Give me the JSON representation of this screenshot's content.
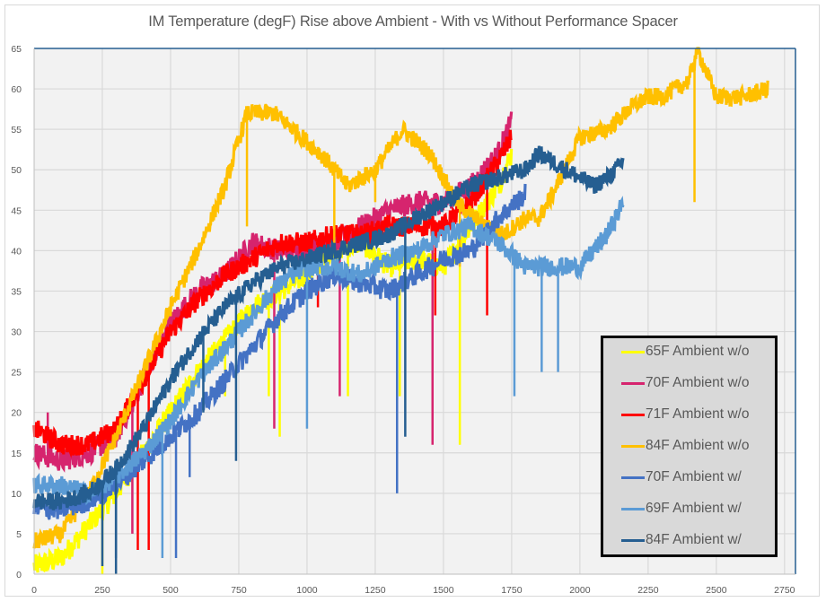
{
  "chart_data": {
    "type": "line",
    "title": "IM Temperature (degF) Rise above Ambient - With vs Without Performance Spacer",
    "xlabel": "",
    "ylabel": "",
    "xlim": [
      0,
      2790
    ],
    "ylim": [
      0,
      65
    ],
    "x_ticks": [
      0,
      250,
      500,
      750,
      1000,
      1250,
      1500,
      1750,
      2000,
      2250,
      2500,
      2750
    ],
    "y_ticks": [
      0,
      5,
      10,
      15,
      20,
      25,
      30,
      35,
      40,
      45,
      50,
      55,
      60,
      65
    ],
    "grid": true,
    "legend_position": "bottom-right",
    "series": [
      {
        "name": "65F Ambient w/o",
        "color": "#ffff00",
        "x": [
          0,
          100,
          200,
          300,
          400,
          500,
          600,
          700,
          800,
          900,
          1000,
          1100,
          1200,
          1300,
          1400,
          1500,
          1600,
          1700,
          1750
        ],
        "y": [
          1,
          2,
          6,
          10,
          15,
          20,
          25,
          29,
          33,
          35,
          37,
          40,
          41,
          38,
          39,
          38,
          43,
          48,
          52
        ],
        "noise": 1.4,
        "spikes": [
          [
            250,
            0
          ],
          [
            700,
            22
          ],
          [
            860,
            22
          ],
          [
            900,
            17
          ],
          [
            1150,
            22
          ],
          [
            1340,
            22
          ],
          [
            1560,
            16
          ]
        ]
      },
      {
        "name": "70F Ambient w/o",
        "color": "#d6246e",
        "x": [
          0,
          100,
          200,
          300,
          400,
          500,
          600,
          700,
          800,
          900,
          1000,
          1100,
          1200,
          1300,
          1400,
          1500,
          1600,
          1700,
          1750
        ],
        "y": [
          15,
          14,
          15,
          17,
          24,
          31,
          35,
          37,
          41,
          40,
          40,
          41,
          43,
          45,
          46,
          46,
          48,
          52,
          56
        ],
        "noise": 1.4,
        "spikes": [
          [
            50,
            20
          ],
          [
            360,
            5
          ],
          [
            880,
            18
          ],
          [
            1120,
            22
          ],
          [
            1460,
            16
          ]
        ]
      },
      {
        "name": "71F Ambient w/o",
        "color": "#ff0000",
        "x": [
          0,
          100,
          200,
          300,
          400,
          500,
          600,
          700,
          800,
          900,
          1000,
          1100,
          1200,
          1300,
          1400,
          1500,
          1600,
          1700,
          1750
        ],
        "y": [
          18,
          16,
          16,
          18,
          24,
          30,
          34,
          37,
          39,
          41,
          41,
          42,
          42,
          43,
          43,
          43,
          46,
          51,
          54
        ],
        "noise": 1.3,
        "spikes": [
          [
            380,
            3
          ],
          [
            420,
            3
          ],
          [
            1040,
            33
          ],
          [
            1470,
            32
          ],
          [
            1660,
            32
          ]
        ]
      },
      {
        "name": "84F Ambient w/o",
        "color": "#ffc000",
        "x": [
          0,
          100,
          200,
          300,
          400,
          500,
          600,
          700,
          780,
          880,
          950,
          1050,
          1100,
          1150,
          1250,
          1350,
          1450,
          1550,
          1650,
          1720,
          1800,
          1850,
          1900,
          2000,
          2100,
          2200,
          2250,
          2300,
          2400,
          2430,
          2500,
          2600,
          2690
        ],
        "y": [
          4,
          5,
          10,
          17,
          25,
          33,
          40,
          48,
          57,
          57,
          55,
          52,
          50,
          48,
          50,
          55,
          52,
          46,
          43,
          42,
          44,
          44,
          47,
          54,
          55,
          58,
          59,
          59,
          61,
          65,
          59,
          59,
          60
        ],
        "noise": 1.1,
        "spikes": [
          [
            780,
            43
          ],
          [
            1100,
            40
          ],
          [
            1250,
            46
          ],
          [
            1560,
            38
          ],
          [
            2420,
            46
          ]
        ]
      },
      {
        "name": "70F Ambient w/",
        "color": "#4472c4",
        "x": [
          0,
          100,
          200,
          300,
          400,
          500,
          600,
          700,
          800,
          900,
          1000,
          1100,
          1200,
          1300,
          1400,
          1500,
          1600,
          1700,
          1800
        ],
        "y": [
          8,
          8,
          9,
          11,
          14,
          17,
          20,
          24,
          28,
          32,
          35,
          37,
          36,
          35,
          37,
          39,
          40,
          44,
          47
        ],
        "noise": 1.3,
        "spikes": [
          [
            300,
            2
          ],
          [
            520,
            2
          ],
          [
            570,
            12
          ],
          [
            1330,
            10
          ]
        ]
      },
      {
        "name": "69F Ambient w/",
        "color": "#5b9bd5",
        "x": [
          0,
          100,
          200,
          300,
          400,
          500,
          600,
          700,
          800,
          900,
          1000,
          1100,
          1200,
          1300,
          1400,
          1500,
          1600,
          1700,
          1800,
          1900,
          2000,
          2100,
          2160
        ],
        "y": [
          11,
          11,
          10,
          12,
          15,
          19,
          24,
          28,
          32,
          36,
          38,
          38,
          37,
          39,
          40,
          42,
          43,
          41,
          38,
          38,
          38,
          42,
          46
        ],
        "noise": 1.2,
        "spikes": [
          [
            470,
            2
          ],
          [
            1000,
            18
          ],
          [
            1760,
            22
          ],
          [
            1860,
            25
          ],
          [
            1920,
            25
          ]
        ]
      },
      {
        "name": "84F Ambient w/",
        "color": "#255e91",
        "x": [
          0,
          100,
          200,
          300,
          400,
          500,
          600,
          700,
          800,
          900,
          1000,
          1100,
          1200,
          1300,
          1400,
          1500,
          1600,
          1700,
          1800,
          1850,
          1900,
          2000,
          2050,
          2100,
          2160
        ],
        "y": [
          9,
          9,
          10,
          13,
          18,
          24,
          29,
          33,
          36,
          38,
          39,
          40,
          41,
          42,
          44,
          46,
          48,
          49,
          50,
          52,
          51,
          49,
          48,
          49,
          51
        ],
        "noise": 1.1,
        "spikes": [
          [
            250,
            1
          ],
          [
            300,
            0
          ],
          [
            620,
            20
          ],
          [
            740,
            14
          ],
          [
            1360,
            17
          ]
        ]
      }
    ]
  }
}
